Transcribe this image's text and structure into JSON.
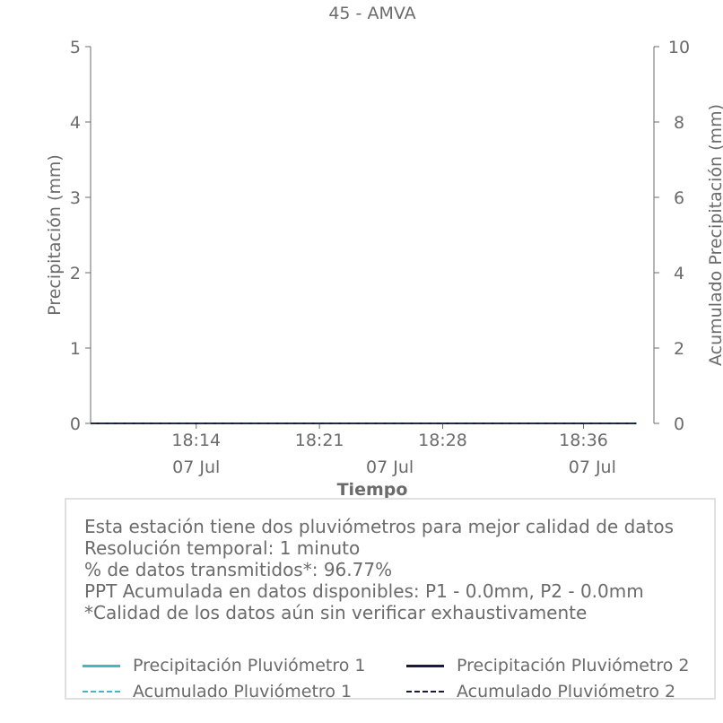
{
  "chart_data": {
    "type": "line",
    "title": "45 - AMVA",
    "xlabel": "Tiempo",
    "ylabel": "Precipitación (mm)",
    "y2label": "Acumulado Precipitación (mm)",
    "ylim": [
      0,
      5
    ],
    "y2lim": [
      0,
      10
    ],
    "yticks": [
      "0",
      "1",
      "2",
      "3",
      "4",
      "5"
    ],
    "y2ticks": [
      "0",
      "2",
      "4",
      "6",
      "8",
      "10"
    ],
    "xrange_minutes": [
      0,
      32
    ],
    "xticks": [
      {
        "label": "18:14",
        "minute": 6
      },
      {
        "label": "18:21",
        "minute": 13
      },
      {
        "label": "18:28",
        "minute": 20
      },
      {
        "label": "18:36",
        "minute": 28
      }
    ],
    "date_labels": [
      {
        "label": "07 Jul",
        "minute": 6
      },
      {
        "label": "07 Jul",
        "minute": 17
      },
      {
        "label": "07 Jul",
        "minute": 28.5
      }
    ],
    "series": [
      {
        "name": "Precipitación Pluviómetro 1",
        "color": "#4ab3c7",
        "style": "solid",
        "axis": "left",
        "values": [
          0,
          0
        ]
      },
      {
        "name": "Precipitación Pluviómetro 2",
        "color": "#1a1a3a",
        "style": "solid",
        "axis": "left",
        "values": [
          0,
          0
        ]
      },
      {
        "name": "Acumulado Pluviómetro 1",
        "color": "#4ab3c7",
        "style": "dashed",
        "axis": "right",
        "values": [
          0,
          0
        ]
      },
      {
        "name": "Acumulado Pluviómetro 2",
        "color": "#1a1a3a",
        "style": "dashed",
        "axis": "right",
        "values": [
          0,
          0
        ]
      }
    ]
  },
  "info": {
    "line1": "Esta estación tiene dos pluviómetros para mejor calidad de datos",
    "line2": "Resolución temporal: 1 minuto",
    "line3": "% de datos transmitidos*: 96.77%",
    "line4": "PPT Acumulada en datos disponibles: P1 - 0.0mm, P2 - 0.0mm",
    "line5": "*Calidad de los datos aún sin verificar exhaustivamente"
  }
}
